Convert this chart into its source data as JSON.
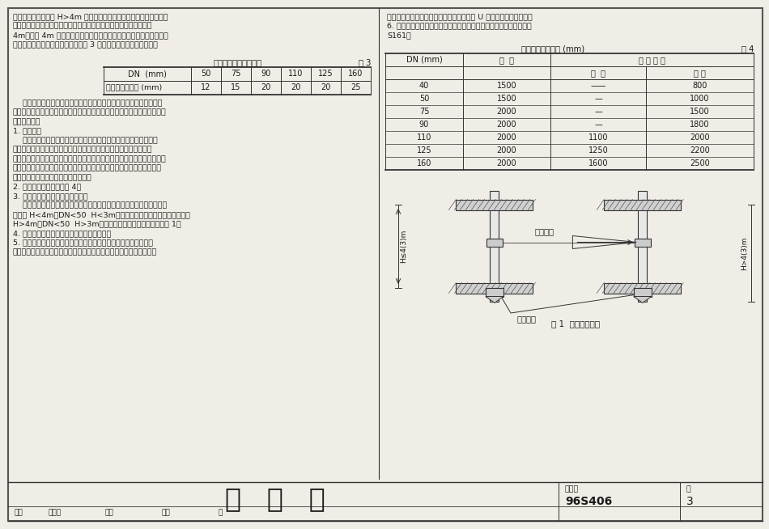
{
  "bg_color": "#f0ede6",
  "page_bg": "#f0ede6",
  "border_color": "#444444",
  "line_color": "#333333",
  "text_color": "#1a1a1a",
  "left_top_lines": [
    "设伸缩节一个，层高 H>4m 时，应根据计算确定；悬吹横管设置伸缩",
    "节应结合支承情况确定，悬吹横支上伸缩节之间的最大间距不应超过",
    "4m，超过 4m 时，应根据管道设计伸缩量和伸缩节最大允许伸缩量计",
    "算确定。管道设计伸缩量不应大于表 3 中伸缩节的最大允许伸缩量。"
  ],
  "right_top_lines": [
    "应夹一层橡胶软庹，安装时应将阑钉制成的 U 形卡用螺栓拴紧固定。",
    "6. 本图集仅绘出几种常用的支承形式，其它情况的支承办法可以参阅",
    "S161。"
  ],
  "table3_title": "伸缩节最大允许伸缩量",
  "table3_num": "表 3",
  "table3_headers": [
    "DN  (mm)",
    "50",
    "75",
    "90",
    "110",
    "125",
    "160"
  ],
  "table3_row_label": "最大允许伸缩量 (mm)",
  "table3_values": [
    "12",
    "15",
    "20",
    "20",
    "20",
    "25"
  ],
  "table4_title": "管道最大支承间距 (mm)",
  "table4_num": "表 4",
  "table4_col1": "DN (mm)",
  "table4_col2": "立  管",
  "table4_col3": "悬 吹 横 管",
  "table4_sub1": "干  管",
  "table4_sub2": "支 管",
  "table4_rows": [
    [
      "40",
      "1500",
      "——",
      "800"
    ],
    [
      "50",
      "1500",
      "—",
      "1000"
    ],
    [
      "75",
      "2000",
      "—",
      "1500"
    ],
    [
      "90",
      "2000",
      "—",
      "1800"
    ],
    [
      "110",
      "2000",
      "1100",
      "2000"
    ],
    [
      "125",
      "2000",
      "1250",
      "2200"
    ],
    [
      "160",
      "2000",
      "1600",
      "2500"
    ]
  ],
  "left_body_lines": [
    "    为了使立管连接支管处位移最小，伸缩节应尽量设在靠近水流汇合管",
    "件处。为了控制管道的膨张方向，两个伸缩节之间必须设置一个固定支承。",
    "八、管道支承",
    "1. 支承种类",
    "    管道支承分滑动支承和固定支承两种。悬吹在楼板下的横支上，若",
    "连接有穿越楼板的卫生器具水平支管时，可视为一个滑动支承；明装",
    "立管穿越楼板应有严格的防漏水措施，采用细石混凝土补贵，分层密实后，",
    "可以形成固定支承；暗潜在管井中的立管，若穿越楼板处未能形成固定支",
    "承时，应每层设置立管固定支承一个。",
    "2. 管道最大支承间距如表 4。",
    "3. 立管滑动支承与固定支承的设置",
    "    固定支承每层设置一个，以控制立管膨张方向，分层支承管道的自重。",
    "当层高 H<4m（DN<50  H<3m）时，层间设滑动支承一个；若层高",
    "H>4m（DN<50  H>3m）时，层间设滑动支承两个。如图 1。",
    "4. 立管底部宜设支墙或采取牢固的固定措施。",
    "5. 管道支件的内壁应光滑，滑动支件与管身之间应留有微隙，若内",
    "壁不够光滑，则应坠坣一层案性材料；固定支件的内壁和管身外壁之间"
  ],
  "diag_label_left": "H≤4(3)m",
  "diag_label_right": "H>4(3)m",
  "diag_slide_label": "滑动支承",
  "diag_fixed_label": "固定支承",
  "diag_caption": "图 1  立管支承示意",
  "footer_title": "总   说   明",
  "footer_atlas": "图集号",
  "footer_atlas_val": "96S406",
  "footer_page_label": "页",
  "footer_page_val": "3",
  "footer_row2": [
    "审核",
    "负责人",
    "校对",
    "设计",
    "页"
  ]
}
